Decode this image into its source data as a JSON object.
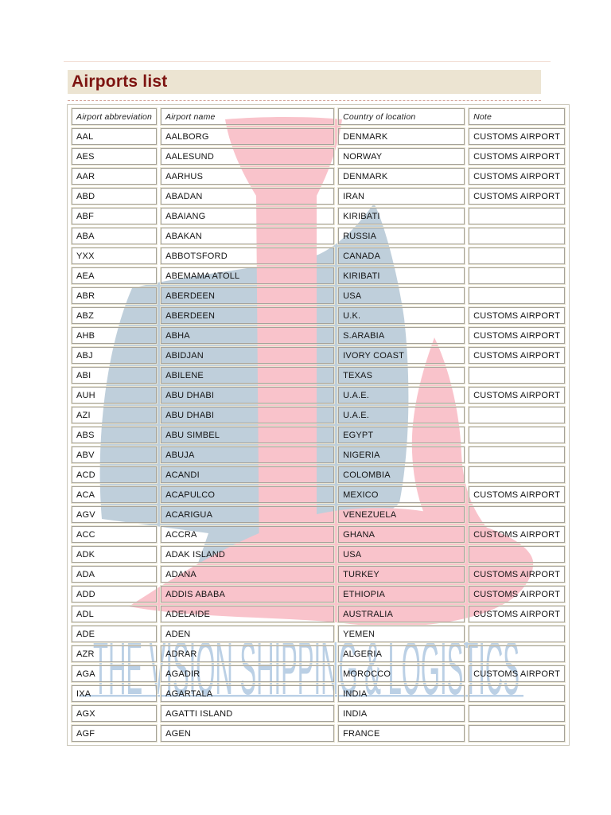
{
  "page": {
    "title": "Airports list"
  },
  "colors": {
    "title_text": "#7d1411",
    "title_band_bg": "#ece4d2",
    "cell_border": "#a5a29a",
    "cell_border_light": "#eae6d3",
    "watermark_pink": "#f9c3cb",
    "watermark_blue": "#bfcfdb",
    "watermark_text_blue": "#b4cbe3"
  },
  "watermark": {
    "text": "THE VISION SHIPPING & LOGISTICS"
  },
  "table": {
    "columns": [
      "Airport abbreviation",
      "Airport name",
      "Country of location",
      "Note"
    ],
    "rows": [
      {
        "code": "AAL",
        "name": "AALBORG",
        "country": "DENMARK",
        "note": "CUSTOMS AIRPORT"
      },
      {
        "code": "AES",
        "name": "AALESUND",
        "country": "NORWAY",
        "note": "CUSTOMS AIRPORT"
      },
      {
        "code": "AAR",
        "name": "AARHUS",
        "country": "DENMARK",
        "note": "CUSTOMS AIRPORT"
      },
      {
        "code": "ABD",
        "name": "ABADAN",
        "country": "IRAN",
        "note": "CUSTOMS AIRPORT"
      },
      {
        "code": "ABF",
        "name": "ABAIANG",
        "country": "KIRIBATI",
        "note": ""
      },
      {
        "code": "ABA",
        "name": "ABAKAN",
        "country": "RUSSIA",
        "note": ""
      },
      {
        "code": "YXX",
        "name": "ABBOTSFORD",
        "country": "CANADA",
        "note": ""
      },
      {
        "code": "AEA",
        "name": "ABEMAMA ATOLL",
        "country": "KIRIBATI",
        "note": ""
      },
      {
        "code": "ABR",
        "name": "ABERDEEN",
        "country": "USA",
        "note": ""
      },
      {
        "code": "ABZ",
        "name": "ABERDEEN",
        "country": "U.K.",
        "note": "CUSTOMS AIRPORT"
      },
      {
        "code": "AHB",
        "name": "ABHA",
        "country": "S.ARABIA",
        "note": "CUSTOMS AIRPORT"
      },
      {
        "code": "ABJ",
        "name": "ABIDJAN",
        "country": "IVORY COAST",
        "note": "CUSTOMS AIRPORT"
      },
      {
        "code": "ABI",
        "name": "ABILENE",
        "country": "TEXAS",
        "note": ""
      },
      {
        "code": "AUH",
        "name": "ABU DHABI",
        "country": "U.A.E.",
        "note": "CUSTOMS AIRPORT"
      },
      {
        "code": "AZI",
        "name": "ABU DHABI",
        "country": "U.A.E.",
        "note": ""
      },
      {
        "code": "ABS",
        "name": "ABU SIMBEL",
        "country": "EGYPT",
        "note": ""
      },
      {
        "code": "ABV",
        "name": "ABUJA",
        "country": "NIGERIA",
        "note": ""
      },
      {
        "code": "ACD",
        "name": "ACANDI",
        "country": "COLOMBIA",
        "note": ""
      },
      {
        "code": "ACA",
        "name": "ACAPULCO",
        "country": "MEXICO",
        "note": "CUSTOMS AIRPORT"
      },
      {
        "code": "AGV",
        "name": "ACARIGUA",
        "country": "VENEZUELA",
        "note": ""
      },
      {
        "code": "ACC",
        "name": "ACCRA",
        "country": "GHANA",
        "note": "CUSTOMS AIRPORT"
      },
      {
        "code": "ADK",
        "name": "ADAK ISLAND",
        "country": "USA",
        "note": ""
      },
      {
        "code": "ADA",
        "name": "ADANA",
        "country": "TURKEY",
        "note": "CUSTOMS AIRPORT"
      },
      {
        "code": "ADD",
        "name": "ADDIS ABABA",
        "country": "ETHIOPIA",
        "note": "CUSTOMS AIRPORT"
      },
      {
        "code": "ADL",
        "name": "ADELAIDE",
        "country": "AUSTRALIA",
        "note": "CUSTOMS AIRPORT"
      },
      {
        "code": "ADE",
        "name": "ADEN",
        "country": "YEMEN",
        "note": ""
      },
      {
        "code": "AZR",
        "name": "ADRAR",
        "country": "ALGERIA",
        "note": ""
      },
      {
        "code": "AGA",
        "name": "AGADIR",
        "country": "MOROCCO",
        "note": "CUSTOMS AIRPORT"
      },
      {
        "code": "IXA",
        "name": "AGARTALA",
        "country": "INDIA",
        "note": ""
      },
      {
        "code": "AGX",
        "name": "AGATTI ISLAND",
        "country": "INDIA",
        "note": ""
      },
      {
        "code": "AGF",
        "name": "AGEN",
        "country": "FRANCE",
        "note": ""
      }
    ]
  }
}
